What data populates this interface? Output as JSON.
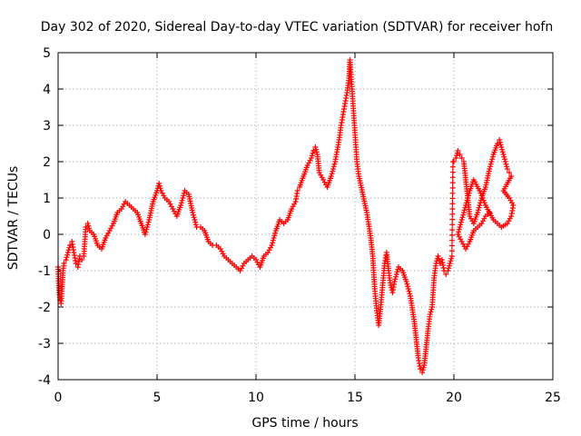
{
  "chart_data": {
    "type": "scatter",
    "title": "Day 302 of 2020, Sidereal Day-to-day VTEC variation (SDTVAR) for receiver hofn",
    "xlabel": "GPS time / hours",
    "ylabel": "SDTVAR / TECUs",
    "xlim": [
      0,
      25
    ],
    "ylim": [
      -4,
      5
    ],
    "xticks": [
      0,
      5,
      10,
      15,
      20,
      25
    ],
    "yticks": [
      -4,
      -3,
      -2,
      -1,
      0,
      1,
      2,
      3,
      4,
      5
    ],
    "grid": true,
    "marker": "+",
    "color": "#ff0000",
    "series": [
      {
        "name": "SDTVAR",
        "points": [
          [
            0.0,
            -0.9
          ],
          [
            0.05,
            -1.6
          ],
          [
            0.1,
            -1.8
          ],
          [
            0.15,
            -1.9
          ],
          [
            0.2,
            -1.5
          ],
          [
            0.25,
            -1.0
          ],
          [
            0.3,
            -0.8
          ],
          [
            0.4,
            -0.7
          ],
          [
            0.5,
            -0.5
          ],
          [
            0.6,
            -0.3
          ],
          [
            0.7,
            -0.2
          ],
          [
            0.8,
            -0.5
          ],
          [
            0.9,
            -0.8
          ],
          [
            1.0,
            -0.9
          ],
          [
            1.1,
            -0.6
          ],
          [
            1.2,
            -0.7
          ],
          [
            1.3,
            -0.6
          ],
          [
            1.4,
            0.2
          ],
          [
            1.5,
            0.3
          ],
          [
            1.6,
            0.1
          ],
          [
            1.8,
            0.0
          ],
          [
            2.0,
            -0.3
          ],
          [
            2.2,
            -0.4
          ],
          [
            2.4,
            -0.1
          ],
          [
            2.6,
            0.1
          ],
          [
            2.8,
            0.3
          ],
          [
            3.0,
            0.6
          ],
          [
            3.2,
            0.7
          ],
          [
            3.4,
            0.9
          ],
          [
            3.6,
            0.8
          ],
          [
            3.8,
            0.7
          ],
          [
            4.0,
            0.6
          ],
          [
            4.2,
            0.3
          ],
          [
            4.4,
            0.0
          ],
          [
            4.6,
            0.4
          ],
          [
            4.8,
            0.9
          ],
          [
            5.0,
            1.2
          ],
          [
            5.1,
            1.4
          ],
          [
            5.2,
            1.2
          ],
          [
            5.4,
            1.0
          ],
          [
            5.6,
            0.9
          ],
          [
            5.8,
            0.7
          ],
          [
            6.0,
            0.5
          ],
          [
            6.2,
            0.8
          ],
          [
            6.4,
            1.2
          ],
          [
            6.6,
            1.1
          ],
          [
            6.8,
            0.6
          ],
          [
            7.0,
            0.2
          ],
          [
            7.2,
            0.2
          ],
          [
            7.4,
            0.1
          ],
          [
            7.6,
            -0.2
          ],
          [
            7.8,
            -0.3
          ],
          [
            8.0,
            -0.3
          ],
          [
            8.2,
            -0.4
          ],
          [
            8.4,
            -0.6
          ],
          [
            8.6,
            -0.7
          ],
          [
            8.8,
            -0.8
          ],
          [
            9.0,
            -0.9
          ],
          [
            9.2,
            -1.0
          ],
          [
            9.4,
            -0.8
          ],
          [
            9.6,
            -0.7
          ],
          [
            9.8,
            -0.6
          ],
          [
            10.0,
            -0.7
          ],
          [
            10.2,
            -0.9
          ],
          [
            10.4,
            -0.6
          ],
          [
            10.6,
            -0.5
          ],
          [
            10.8,
            -0.3
          ],
          [
            11.0,
            0.1
          ],
          [
            11.2,
            0.4
          ],
          [
            11.4,
            0.3
          ],
          [
            11.6,
            0.4
          ],
          [
            11.8,
            0.7
          ],
          [
            12.0,
            0.9
          ],
          [
            12.1,
            1.2
          ],
          [
            12.2,
            1.3
          ],
          [
            12.4,
            1.6
          ],
          [
            12.6,
            1.9
          ],
          [
            12.8,
            2.1
          ],
          [
            12.9,
            2.3
          ],
          [
            13.0,
            2.4
          ],
          [
            13.1,
            2.2
          ],
          [
            13.2,
            1.7
          ],
          [
            13.4,
            1.5
          ],
          [
            13.6,
            1.3
          ],
          [
            13.8,
            1.6
          ],
          [
            14.0,
            2.0
          ],
          [
            14.2,
            2.6
          ],
          [
            14.3,
            3.0
          ],
          [
            14.4,
            3.3
          ],
          [
            14.5,
            3.6
          ],
          [
            14.6,
            3.9
          ],
          [
            14.7,
            4.3
          ],
          [
            14.75,
            4.8
          ],
          [
            14.8,
            4.4
          ],
          [
            14.9,
            3.6
          ],
          [
            15.0,
            2.8
          ],
          [
            15.1,
            2.0
          ],
          [
            15.2,
            1.6
          ],
          [
            15.4,
            1.1
          ],
          [
            15.6,
            0.6
          ],
          [
            15.8,
            -0.1
          ],
          [
            15.9,
            -0.6
          ],
          [
            16.0,
            -1.5
          ],
          [
            16.1,
            -2.1
          ],
          [
            16.2,
            -2.5
          ],
          [
            16.3,
            -2.0
          ],
          [
            16.4,
            -1.4
          ],
          [
            16.5,
            -0.8
          ],
          [
            16.6,
            -0.5
          ],
          [
            16.7,
            -1.0
          ],
          [
            16.8,
            -1.4
          ],
          [
            16.9,
            -1.6
          ],
          [
            17.0,
            -1.3
          ],
          [
            17.2,
            -0.9
          ],
          [
            17.4,
            -1.0
          ],
          [
            17.6,
            -1.3
          ],
          [
            17.8,
            -1.7
          ],
          [
            18.0,
            -2.4
          ],
          [
            18.1,
            -2.9
          ],
          [
            18.2,
            -3.4
          ],
          [
            18.3,
            -3.7
          ],
          [
            18.4,
            -3.8
          ],
          [
            18.5,
            -3.6
          ],
          [
            18.6,
            -3.1
          ],
          [
            18.7,
            -2.6
          ],
          [
            18.8,
            -2.2
          ],
          [
            18.9,
            -2.0
          ],
          [
            19.0,
            -1.2
          ],
          [
            19.1,
            -0.8
          ],
          [
            19.2,
            -0.6
          ],
          [
            19.3,
            -0.8
          ],
          [
            19.4,
            -0.7
          ],
          [
            19.5,
            -1.0
          ],
          [
            19.6,
            -1.1
          ],
          [
            19.7,
            -1.0
          ],
          [
            19.8,
            -0.8
          ],
          [
            19.9,
            -0.6
          ],
          [
            19.95,
            2.0
          ],
          [
            20.0,
            2.0
          ],
          [
            20.1,
            2.1
          ],
          [
            20.2,
            2.3
          ],
          [
            20.3,
            2.2
          ],
          [
            20.4,
            2.1
          ],
          [
            20.5,
            2.0
          ],
          [
            20.6,
            1.5
          ],
          [
            20.7,
            1.0
          ],
          [
            20.8,
            0.5
          ],
          [
            21.0,
            0.3
          ],
          [
            21.2,
            0.6
          ],
          [
            21.4,
            1.0
          ],
          [
            21.6,
            1.3
          ],
          [
            21.8,
            1.8
          ],
          [
            22.0,
            2.2
          ],
          [
            22.2,
            2.5
          ],
          [
            22.3,
            2.6
          ],
          [
            22.4,
            2.4
          ],
          [
            22.5,
            2.2
          ],
          [
            22.6,
            2.0
          ],
          [
            22.7,
            1.8
          ],
          [
            22.8,
            1.7
          ],
          [
            22.9,
            1.6
          ],
          [
            22.5,
            1.2
          ],
          [
            22.8,
            1.0
          ],
          [
            23.0,
            0.8
          ],
          [
            22.9,
            0.5
          ],
          [
            22.7,
            0.3
          ],
          [
            22.4,
            0.2
          ],
          [
            22.0,
            0.4
          ],
          [
            21.6,
            0.8
          ],
          [
            21.3,
            1.2
          ],
          [
            21.0,
            1.5
          ],
          [
            20.8,
            1.2
          ],
          [
            20.6,
            0.8
          ],
          [
            20.4,
            0.4
          ],
          [
            20.2,
            0.0
          ],
          [
            20.4,
            -0.2
          ],
          [
            20.6,
            -0.4
          ],
          [
            20.8,
            -0.2
          ],
          [
            21.0,
            0.1
          ],
          [
            21.2,
            0.2
          ],
          [
            21.4,
            0.3
          ],
          [
            21.6,
            0.5
          ],
          [
            21.8,
            0.6
          ]
        ]
      }
    ]
  }
}
